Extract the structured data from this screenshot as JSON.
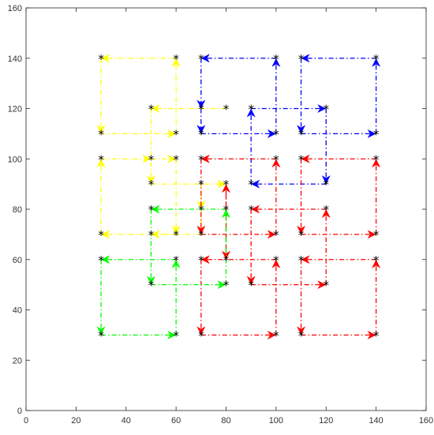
{
  "chart_data": {
    "type": "line",
    "title": "",
    "xlabel": "",
    "ylabel": "",
    "xlim": [
      0,
      160
    ],
    "ylim": [
      0,
      160
    ],
    "xticks": [
      0,
      20,
      40,
      60,
      80,
      100,
      120,
      140,
      160
    ],
    "yticks": [
      0,
      20,
      40,
      60,
      80,
      100,
      120,
      140,
      160
    ],
    "xtick_labels": [
      "0",
      "20",
      "40",
      "60",
      "80",
      "100",
      "120",
      "140",
      "160"
    ],
    "ytick_labels": [
      "0",
      "20",
      "40",
      "60",
      "80",
      "100",
      "120",
      "140",
      "160"
    ],
    "grid": false,
    "line_style": "dash-dot",
    "arrowheads": true,
    "node_marker": "*",
    "node_color": "#000000",
    "series": [
      {
        "color": "#ffff00",
        "segments": [
          [
            [
              60,
              140
            ],
            [
              30,
              140
            ]
          ],
          [
            [
              30,
              140
            ],
            [
              30,
              110
            ]
          ],
          [
            [
              30,
              110
            ],
            [
              60,
              110
            ]
          ],
          [
            [
              60,
              110
            ],
            [
              60,
              140
            ]
          ],
          [
            [
              50,
              120
            ],
            [
              50,
              90
            ]
          ],
          [
            [
              50,
              90
            ],
            [
              80,
              90
            ]
          ],
          [
            [
              80,
              120
            ],
            [
              50,
              120
            ]
          ],
          [
            [
              30,
              100
            ],
            [
              50,
              100
            ]
          ],
          [
            [
              50,
              100
            ],
            [
              60,
              100
            ]
          ],
          [
            [
              60,
              100
            ],
            [
              60,
              70
            ]
          ],
          [
            [
              60,
              70
            ],
            [
              30,
              70
            ]
          ],
          [
            [
              30,
              70
            ],
            [
              30,
              100
            ]
          ],
          [
            [
              70,
              90
            ],
            [
              70,
              80
            ]
          ],
          [
            [
              70,
              80
            ],
            [
              70,
              70
            ]
          ],
          [
            [
              70,
              70
            ],
            [
              50,
              70
            ]
          ]
        ]
      },
      {
        "color": "#0000ff",
        "segments": [
          [
            [
              100,
              140
            ],
            [
              70,
              140
            ]
          ],
          [
            [
              70,
              140
            ],
            [
              70,
              120
            ]
          ],
          [
            [
              70,
              120
            ],
            [
              70,
              110
            ]
          ],
          [
            [
              70,
              110
            ],
            [
              100,
              110
            ]
          ],
          [
            [
              100,
              110
            ],
            [
              100,
              140
            ]
          ],
          [
            [
              140,
              140
            ],
            [
              110,
              140
            ]
          ],
          [
            [
              110,
              140
            ],
            [
              110,
              110
            ]
          ],
          [
            [
              110,
              110
            ],
            [
              140,
              110
            ]
          ],
          [
            [
              140,
              110
            ],
            [
              140,
              140
            ]
          ],
          [
            [
              90,
              120
            ],
            [
              120,
              120
            ]
          ],
          [
            [
              120,
              120
            ],
            [
              120,
              90
            ]
          ],
          [
            [
              120,
              90
            ],
            [
              90,
              90
            ]
          ],
          [
            [
              90,
              90
            ],
            [
              90,
              120
            ]
          ]
        ]
      },
      {
        "color": "#ff0000",
        "segments": [
          [
            [
              100,
              100
            ],
            [
              70,
              100
            ]
          ],
          [
            [
              70,
              100
            ],
            [
              70,
              70
            ]
          ],
          [
            [
              70,
              70
            ],
            [
              100,
              70
            ]
          ],
          [
            [
              100,
              70
            ],
            [
              100,
              100
            ]
          ],
          [
            [
              140,
              100
            ],
            [
              110,
              100
            ]
          ],
          [
            [
              110,
              100
            ],
            [
              110,
              70
            ]
          ],
          [
            [
              110,
              70
            ],
            [
              140,
              70
            ]
          ],
          [
            [
              140,
              70
            ],
            [
              140,
              100
            ]
          ],
          [
            [
              80,
              60
            ],
            [
              80,
              90
            ]
          ],
          [
            [
              80,
              90
            ],
            [
              80,
              60
            ]
          ],
          [
            [
              90,
              80
            ],
            [
              90,
              50
            ]
          ],
          [
            [
              90,
              50
            ],
            [
              120,
              50
            ]
          ],
          [
            [
              120,
              50
            ],
            [
              120,
              80
            ]
          ],
          [
            [
              120,
              80
            ],
            [
              90,
              80
            ]
          ],
          [
            [
              100,
              60
            ],
            [
              70,
              60
            ]
          ],
          [
            [
              70,
              60
            ],
            [
              70,
              30
            ]
          ],
          [
            [
              70,
              30
            ],
            [
              100,
              30
            ]
          ],
          [
            [
              100,
              30
            ],
            [
              100,
              60
            ]
          ],
          [
            [
              140,
              60
            ],
            [
              110,
              60
            ]
          ],
          [
            [
              110,
              60
            ],
            [
              110,
              30
            ]
          ],
          [
            [
              110,
              30
            ],
            [
              140,
              30
            ]
          ],
          [
            [
              140,
              30
            ],
            [
              140,
              60
            ]
          ]
        ]
      },
      {
        "color": "#00ff00",
        "segments": [
          [
            [
              60,
              60
            ],
            [
              30,
              60
            ]
          ],
          [
            [
              30,
              60
            ],
            [
              30,
              30
            ]
          ],
          [
            [
              30,
              30
            ],
            [
              60,
              30
            ]
          ],
          [
            [
              60,
              30
            ],
            [
              60,
              60
            ]
          ],
          [
            [
              80,
              80
            ],
            [
              50,
              80
            ]
          ],
          [
            [
              50,
              80
            ],
            [
              50,
              50
            ]
          ],
          [
            [
              50,
              50
            ],
            [
              80,
              50
            ]
          ],
          [
            [
              80,
              50
            ],
            [
              80,
              80
            ]
          ]
        ]
      }
    ]
  }
}
